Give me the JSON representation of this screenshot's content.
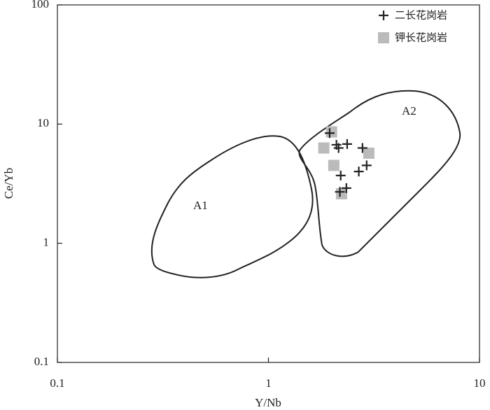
{
  "chart_data": {
    "type": "scatter",
    "x_label": "Y/Nb",
    "y_label": "Ce/Yb",
    "xscale": "log",
    "yscale": "log",
    "xlim": [
      0.1,
      10
    ],
    "ylim": [
      0.1,
      100
    ],
    "xticks": [
      0.1,
      1,
      10
    ],
    "yticks": [
      0.1,
      1,
      10,
      100
    ],
    "annotations": [
      "A1",
      "A2"
    ],
    "legend": "top-right",
    "series": [
      {
        "name": "二长花岗岩",
        "marker": "plus",
        "color": "#222222",
        "x": [
          1.95,
          2.1,
          2.15,
          2.36,
          2.79,
          2.2,
          2.68,
          2.92,
          2.18,
          2.34
        ],
        "values": [
          8.4,
          6.7,
          6.3,
          6.8,
          6.3,
          3.7,
          4.0,
          4.5,
          2.7,
          2.9
        ]
      },
      {
        "name": "钾长花岗岩",
        "marker": "square",
        "color": "#bbbbbb",
        "x": [
          1.99,
          1.83,
          2.04,
          2.99,
          2.22
        ],
        "values": [
          8.6,
          6.3,
          4.5,
          5.7,
          2.6
        ]
      }
    ]
  }
}
